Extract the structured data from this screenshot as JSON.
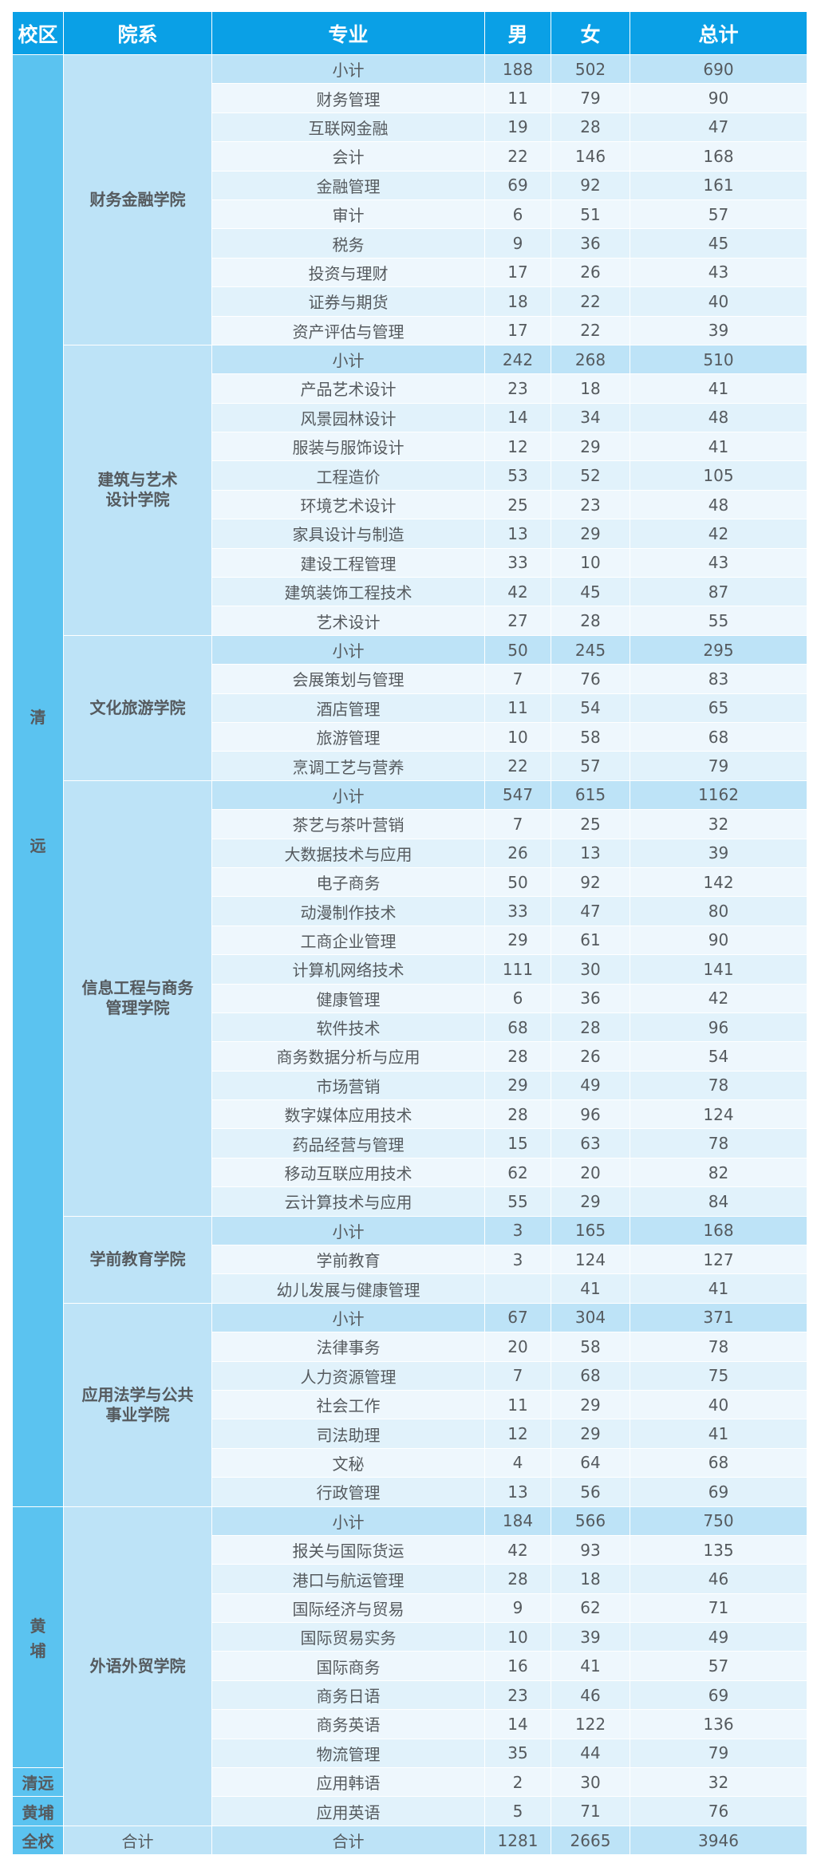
{
  "header": {
    "campus": "校区",
    "department": "院系",
    "major": "专业",
    "male": "男",
    "female": "女",
    "total": "总计"
  },
  "colors": {
    "header_bg": "#0aa0e6",
    "campus_bg": "#5bc3f0",
    "dept_bg": "#bde3f7",
    "subtotal_text": "#1a9be0",
    "row_light": "#eef7fd",
    "row_alt": "#e1f2fb"
  },
  "campuses": [
    {
      "id": "qingyuan",
      "label": "清远",
      "chars": [
        "清",
        "远"
      ]
    },
    {
      "id": "huangpu",
      "label": "黄埔",
      "chars": [
        "黄",
        "埔"
      ]
    },
    {
      "id": "qingyuan-short",
      "label": "清远"
    },
    {
      "id": "huangpu-short",
      "label": "黄埔"
    },
    {
      "id": "whole-school",
      "label": "全校"
    }
  ],
  "departments": [
    {
      "name": "财务金融学院",
      "subtotal": {
        "label": "小计",
        "male": "188",
        "female": "502",
        "total": "690"
      },
      "majors": [
        {
          "name": "财务管理",
          "male": "11",
          "female": "79",
          "total": "90"
        },
        {
          "name": "互联网金融",
          "male": "19",
          "female": "28",
          "total": "47"
        },
        {
          "name": "会计",
          "male": "22",
          "female": "146",
          "total": "168"
        },
        {
          "name": "金融管理",
          "male": "69",
          "female": "92",
          "total": "161"
        },
        {
          "name": "审计",
          "male": "6",
          "female": "51",
          "total": "57"
        },
        {
          "name": "税务",
          "male": "9",
          "female": "36",
          "total": "45"
        },
        {
          "name": "投资与理财",
          "male": "17",
          "female": "26",
          "total": "43"
        },
        {
          "name": "证券与期货",
          "male": "18",
          "female": "22",
          "total": "40"
        },
        {
          "name": "资产评估与管理",
          "male": "17",
          "female": "22",
          "total": "39"
        }
      ]
    },
    {
      "name": "建筑与艺术\n设计学院",
      "subtotal": {
        "label": "小计",
        "male": "242",
        "female": "268",
        "total": "510"
      },
      "majors": [
        {
          "name": "产品艺术设计",
          "male": "23",
          "female": "18",
          "total": "41"
        },
        {
          "name": "风景园林设计",
          "male": "14",
          "female": "34",
          "total": "48"
        },
        {
          "name": "服装与服饰设计",
          "male": "12",
          "female": "29",
          "total": "41"
        },
        {
          "name": "工程造价",
          "male": "53",
          "female": "52",
          "total": "105"
        },
        {
          "name": "环境艺术设计",
          "male": "25",
          "female": "23",
          "total": "48"
        },
        {
          "name": "家具设计与制造",
          "male": "13",
          "female": "29",
          "total": "42"
        },
        {
          "name": "建设工程管理",
          "male": "33",
          "female": "10",
          "total": "43"
        },
        {
          "name": "建筑装饰工程技术",
          "male": "42",
          "female": "45",
          "total": "87"
        },
        {
          "name": "艺术设计",
          "male": "27",
          "female": "28",
          "total": "55"
        }
      ]
    },
    {
      "name": "文化旅游学院",
      "subtotal": {
        "label": "小计",
        "male": "50",
        "female": "245",
        "total": "295"
      },
      "majors": [
        {
          "name": "会展策划与管理",
          "male": "7",
          "female": "76",
          "total": "83"
        },
        {
          "name": "酒店管理",
          "male": "11",
          "female": "54",
          "total": "65"
        },
        {
          "name": "旅游管理",
          "male": "10",
          "female": "58",
          "total": "68"
        },
        {
          "name": "烹调工艺与营养",
          "male": "22",
          "female": "57",
          "total": "79"
        }
      ]
    },
    {
      "name": "信息工程与商务\n管理学院",
      "subtotal": {
        "label": "小计",
        "male": "547",
        "female": "615",
        "total": "1162"
      },
      "majors": [
        {
          "name": "茶艺与茶叶营销",
          "male": "7",
          "female": "25",
          "total": "32"
        },
        {
          "name": "大数据技术与应用",
          "male": "26",
          "female": "13",
          "total": "39"
        },
        {
          "name": "电子商务",
          "male": "50",
          "female": "92",
          "total": "142"
        },
        {
          "name": "动漫制作技术",
          "male": "33",
          "female": "47",
          "total": "80"
        },
        {
          "name": "工商企业管理",
          "male": "29",
          "female": "61",
          "total": "90"
        },
        {
          "name": "计算机网络技术",
          "male": "111",
          "female": "30",
          "total": "141"
        },
        {
          "name": "健康管理",
          "male": "6",
          "female": "36",
          "total": "42"
        },
        {
          "name": "软件技术",
          "male": "68",
          "female": "28",
          "total": "96"
        },
        {
          "name": "商务数据分析与应用",
          "male": "28",
          "female": "26",
          "total": "54"
        },
        {
          "name": "市场营销",
          "male": "29",
          "female": "49",
          "total": "78"
        },
        {
          "name": "数字媒体应用技术",
          "male": "28",
          "female": "96",
          "total": "124"
        },
        {
          "name": "药品经营与管理",
          "male": "15",
          "female": "63",
          "total": "78"
        },
        {
          "name": "移动互联应用技术",
          "male": "62",
          "female": "20",
          "total": "82"
        },
        {
          "name": "云计算技术与应用",
          "male": "55",
          "female": "29",
          "total": "84"
        }
      ]
    },
    {
      "name": "学前教育学院",
      "subtotal": {
        "label": "小计",
        "male": "3",
        "female": "165",
        "total": "168"
      },
      "majors": [
        {
          "name": "学前教育",
          "male": "3",
          "female": "124",
          "total": "127"
        },
        {
          "name": "幼儿发展与健康管理",
          "male": "",
          "female": "41",
          "total": "41"
        }
      ]
    },
    {
      "name": "应用法学与公共\n事业学院",
      "subtotal": {
        "label": "小计",
        "male": "67",
        "female": "304",
        "total": "371"
      },
      "majors": [
        {
          "name": "法律事务",
          "male": "20",
          "female": "58",
          "total": "78"
        },
        {
          "name": "人力资源管理",
          "male": "7",
          "female": "68",
          "total": "75"
        },
        {
          "name": "社会工作",
          "male": "11",
          "female": "29",
          "total": "40"
        },
        {
          "name": "司法助理",
          "male": "12",
          "female": "29",
          "total": "41"
        },
        {
          "name": "文秘",
          "male": "4",
          "female": "64",
          "total": "68"
        },
        {
          "name": "行政管理",
          "male": "13",
          "female": "56",
          "total": "69"
        }
      ]
    },
    {
      "name": "外语外贸学院",
      "subtotal": {
        "label": "小计",
        "male": "184",
        "female": "566",
        "total": "750"
      },
      "majors": [
        {
          "name": "报关与国际货运",
          "male": "42",
          "female": "93",
          "total": "135"
        },
        {
          "name": "港口与航运管理",
          "male": "28",
          "female": "18",
          "total": "46"
        },
        {
          "name": "国际经济与贸易",
          "male": "9",
          "female": "62",
          "total": "71"
        },
        {
          "name": "国际贸易实务",
          "male": "10",
          "female": "39",
          "total": "49"
        },
        {
          "name": "国际商务",
          "male": "16",
          "female": "41",
          "total": "57"
        },
        {
          "name": "商务日语",
          "male": "23",
          "female": "46",
          "total": "69"
        },
        {
          "name": "商务英语",
          "male": "14",
          "female": "122",
          "total": "136"
        },
        {
          "name": "物流管理",
          "male": "35",
          "female": "44",
          "total": "79"
        },
        {
          "name": "应用韩语",
          "male": "2",
          "female": "30",
          "total": "32"
        },
        {
          "name": "应用英语",
          "male": "5",
          "female": "71",
          "total": "76"
        }
      ]
    }
  ],
  "grand_total": {
    "campus": "全校",
    "department": "合计",
    "label": "合计",
    "male": "1281",
    "female": "2665",
    "total": "3946"
  }
}
